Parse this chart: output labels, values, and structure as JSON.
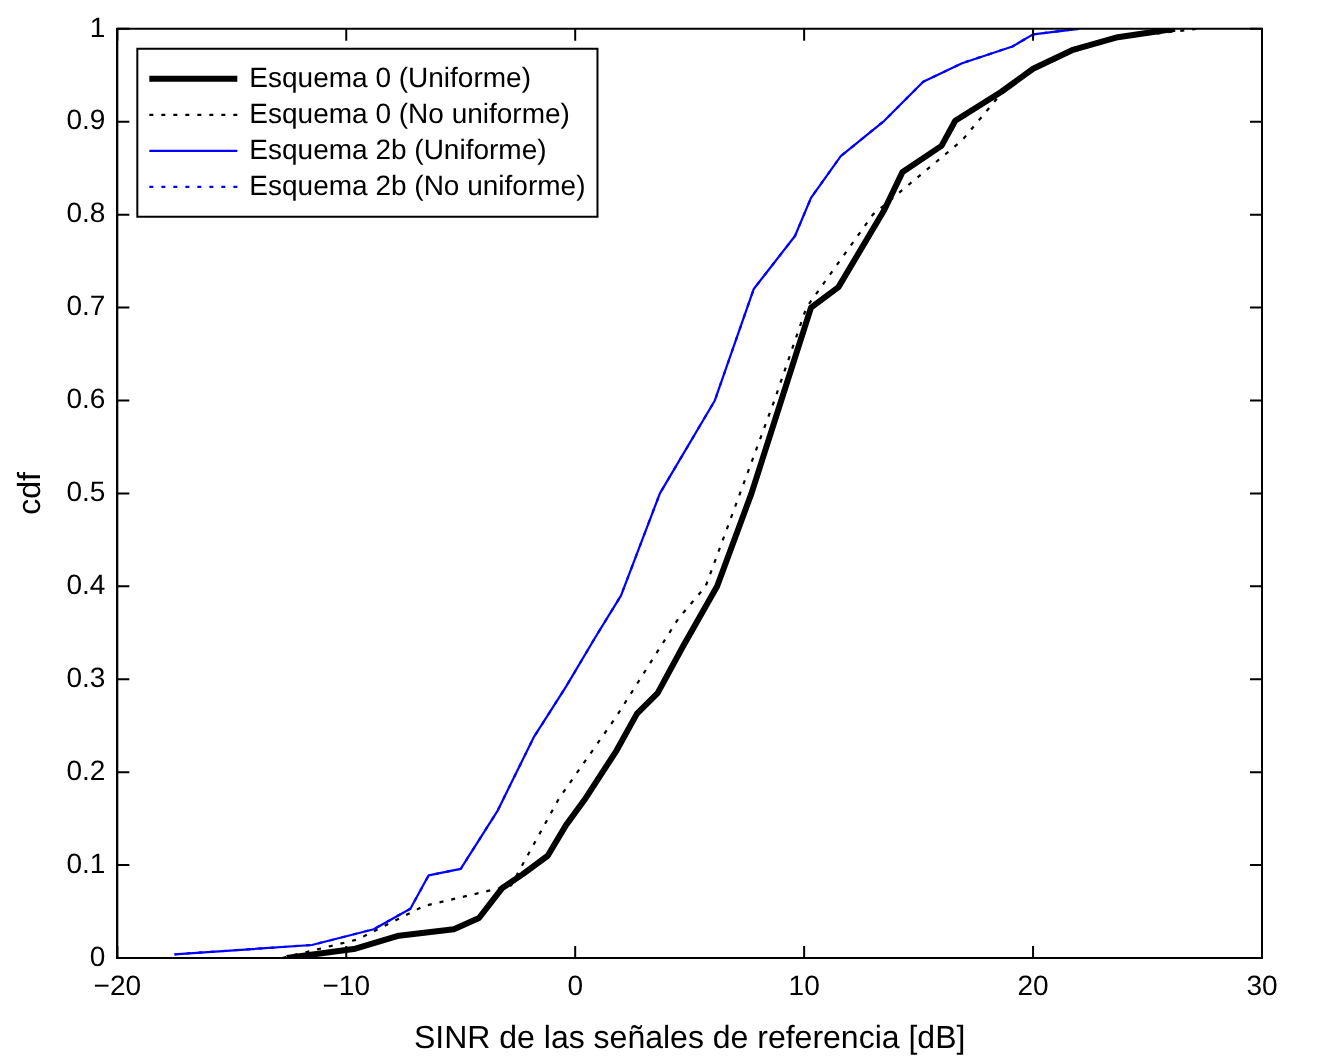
{
  "chart_data": {
    "type": "line",
    "xlabel": "SINR de las señales de referencia [dB]",
    "ylabel": "cdf",
    "xlim": [
      -20,
      30
    ],
    "ylim": [
      0,
      1
    ],
    "xticks": [
      {
        "value": -20,
        "label": "−20"
      },
      {
        "value": -10,
        "label": "−10"
      },
      0,
      10,
      20,
      30
    ],
    "yticks": [
      0,
      0.1,
      0.2,
      0.3,
      0.4,
      0.5,
      0.6,
      0.7,
      0.8,
      0.9,
      1
    ],
    "grid": false,
    "legend": "top left",
    "marker": "none",
    "series": [
      {
        "name": "Esquema 0 (Uniforme)",
        "color": "#000000",
        "line_style": "solid",
        "x": [
          -12.6,
          -9.6,
          -7.7,
          -5.3,
          -4.2,
          -3.2,
          -2.3,
          -1.2,
          -0.4,
          0.4,
          1.8,
          2.7,
          3.6,
          4.7,
          6.2,
          7.7,
          9.0,
          10.3,
          11.5,
          13.5,
          14.3,
          16.0,
          16.6,
          18.6,
          20.0,
          21.7,
          23.7,
          26.2
        ],
        "values": [
          0,
          0.01,
          0.024,
          0.031,
          0.043,
          0.075,
          0.09,
          0.11,
          0.143,
          0.17,
          0.223,
          0.263,
          0.285,
          0.335,
          0.4,
          0.5,
          0.6,
          0.7,
          0.722,
          0.805,
          0.846,
          0.874,
          0.901,
          0.932,
          0.957,
          0.977,
          0.991,
          1
        ]
      },
      {
        "name": "Esquema 0 (No uniforme)",
        "color": "#000000",
        "line_style": "dotted",
        "x": [
          -12.8,
          -9.5,
          -6.6,
          -2.8,
          -0.7,
          1.8,
          4.5,
          5.7,
          7.2,
          8.7,
          10.1,
          13.0,
          16.9,
          18.6,
          20.0,
          21.7,
          23.7,
          27.2
        ],
        "values": [
          0,
          0.02,
          0.056,
          0.078,
          0.172,
          0.26,
          0.365,
          0.4,
          0.5,
          0.6,
          0.7,
          0.8,
          0.88,
          0.93,
          0.955,
          0.975,
          0.99,
          1
        ]
      },
      {
        "name": "Esquema 2b (Uniforme)",
        "color": "#0000ff",
        "line_style": "solid",
        "x": [
          -17.5,
          -11.5,
          -8.8,
          -7.2,
          -6.4,
          -5.0,
          -3.4,
          -1.8,
          -0.4,
          0.9,
          2.0,
          3.7,
          6.1,
          7.8,
          9.6,
          10.3,
          11.6,
          13.5,
          15.2,
          16.9,
          19.1,
          20.0,
          22.0
        ],
        "values": [
          0.004,
          0.014,
          0.031,
          0.053,
          0.089,
          0.096,
          0.158,
          0.238,
          0.292,
          0.346,
          0.39,
          0.5,
          0.6,
          0.72,
          0.777,
          0.818,
          0.863,
          0.901,
          0.943,
          0.963,
          0.981,
          0.994,
          1
        ]
      },
      {
        "name": "Esquema 2b (No uniforme)",
        "color": "#0000ff",
        "line_style": "dotted",
        "x": [
          -17.5,
          -11.5,
          -8.8,
          -7.2,
          -6.4,
          -5.0,
          -3.4,
          -1.8,
          -0.4,
          0.9,
          2.0,
          3.7,
          6.1,
          7.8,
          9.6,
          10.3,
          11.6,
          13.5,
          15.2,
          16.9,
          19.1,
          20.0,
          22.0
        ],
        "values": [
          0.004,
          0.014,
          0.031,
          0.053,
          0.089,
          0.096,
          0.158,
          0.238,
          0.292,
          0.346,
          0.39,
          0.5,
          0.6,
          0.72,
          0.777,
          0.818,
          0.863,
          0.901,
          0.943,
          0.963,
          0.981,
          0.994,
          1
        ]
      }
    ]
  }
}
